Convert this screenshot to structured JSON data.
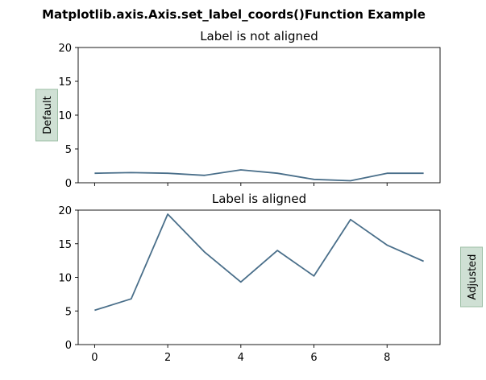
{
  "figure": {
    "suptitle": "Matplotlib.axis.Axis.set_label_coords()Function Example"
  },
  "chart_data": [
    {
      "type": "line",
      "title": "Label is not aligned",
      "ylabel": "Default",
      "ylabel_style": "boxed, rotated vertical, left of axis",
      "x": [
        0,
        1,
        2,
        3,
        4,
        5,
        6,
        7,
        8,
        9
      ],
      "series": [
        {
          "values": [
            1.4,
            1.5,
            1.4,
            1.1,
            1.9,
            1.4,
            0.5,
            0.3,
            1.4,
            1.4
          ],
          "color": "#4a6f8a"
        }
      ],
      "xlim": [
        -0.45,
        9.45
      ],
      "ylim": [
        0,
        20
      ],
      "xticks": [
        0,
        2,
        4,
        6,
        8
      ],
      "xticklabels_visible": false,
      "yticks": [
        0,
        5,
        10,
        15,
        20
      ],
      "grid": false
    },
    {
      "type": "line",
      "title": "Label is aligned",
      "ylabel": "Adjusted",
      "ylabel_style": "boxed, rotated vertical, placed right of axis",
      "x": [
        0,
        1,
        2,
        3,
        4,
        5,
        6,
        7,
        8,
        9
      ],
      "series": [
        {
          "values": [
            5.1,
            6.8,
            19.4,
            13.8,
            9.3,
            14.0,
            10.2,
            18.6,
            14.8,
            12.4
          ],
          "color": "#4a6f8a"
        }
      ],
      "xlim": [
        -0.45,
        9.45
      ],
      "ylim": [
        0,
        20
      ],
      "xticks": [
        0,
        2,
        4,
        6,
        8
      ],
      "xticklabels_visible": true,
      "yticks": [
        0,
        5,
        10,
        15,
        20
      ],
      "grid": false
    }
  ],
  "colors": {
    "line": "#4a6f8a",
    "label_box_fill": "#cfe0d4",
    "label_box_edge": "#9dbfa6",
    "axes": "#000000"
  }
}
